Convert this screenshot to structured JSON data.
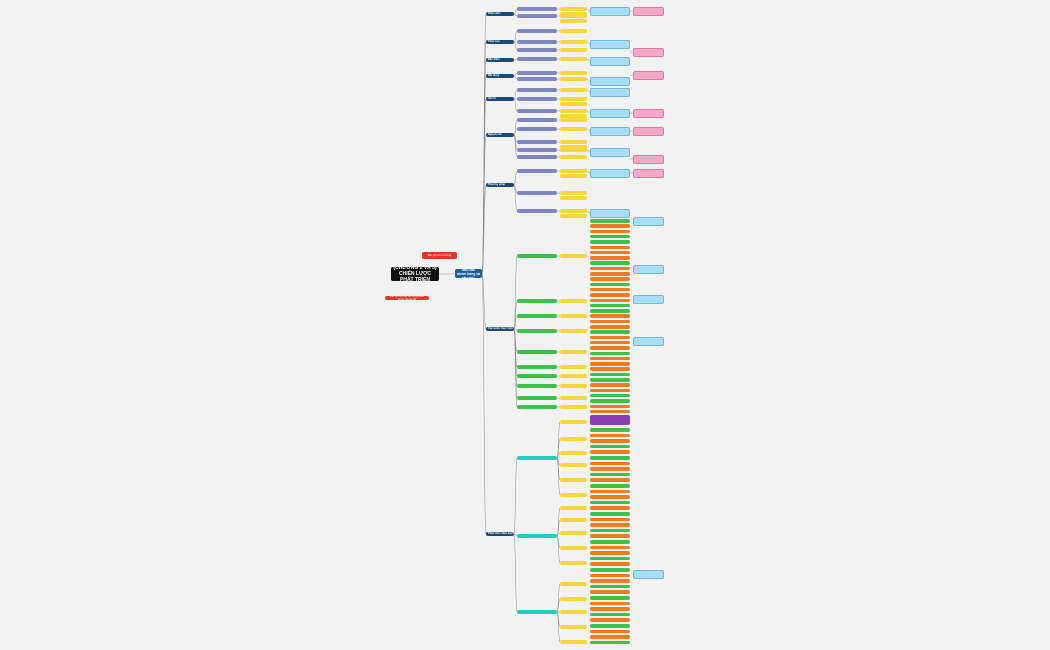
{
  "root": {
    "title": "(CHƯƠNG 2 VÀ 3) CHIẾN LƯỢC PHÁT TRIỂN"
  },
  "center": {
    "label": "Nêu các nhóm hàng và cấu trúc"
  },
  "side_notes": [
    "Bản ghi chú chương",
    "Các ghi chú về nội dung quan trọng của sơ đồ"
  ],
  "colors": {
    "root": "#111111",
    "center": "#1f5f9e",
    "navy": "#1a4a7a",
    "lavender": "#7f86c2",
    "teal": "#23cfc0",
    "green": "#3ec14a",
    "yellow": "#f5d63d",
    "orange": "#ef7a1f",
    "purple": "#8a3fb8",
    "note_blue": "#a9dcf5",
    "note_pink": "#f4a8c7",
    "red": "#e8332a",
    "line": "#8a8a8a"
  },
  "branches": [
    "Khái niệm",
    "Phân loại",
    "Đặc điểm",
    "Nội dung",
    "Vai trò",
    "Nguyên tắc",
    "Phương pháp",
    "Các bước thực hiện",
    "Phân tích chiến lược"
  ]
}
